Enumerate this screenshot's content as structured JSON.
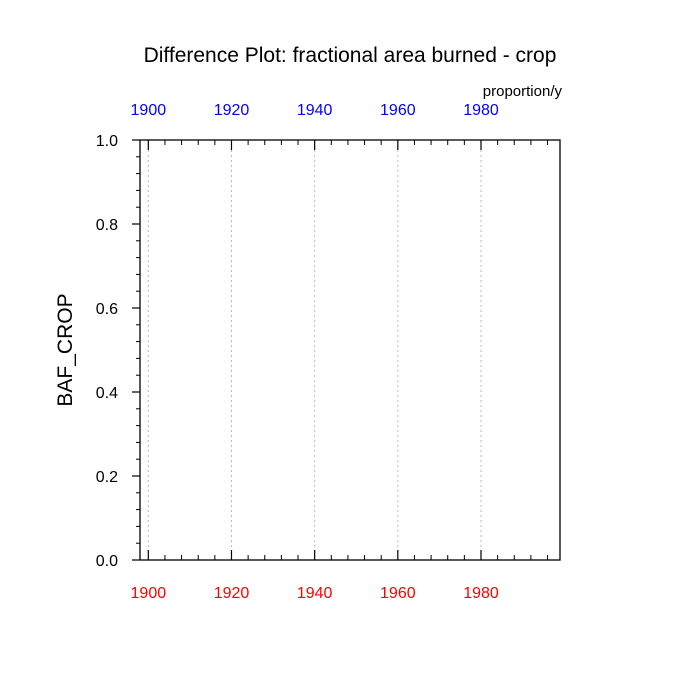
{
  "chart_data": {
    "type": "line",
    "title": "Difference Plot: fractional area burned - crop",
    "units": "proportion/y",
    "ylabel": "BAF_CROP",
    "xlabel": "",
    "xlim": [
      1898,
      1999
    ],
    "ylim": [
      0.0,
      1.0
    ],
    "x_ticks": [
      1900,
      1920,
      1940,
      1960,
      1980
    ],
    "x_tick_labels": [
      "1900",
      "1920",
      "1940",
      "1960",
      "1980"
    ],
    "y_ticks": [
      0.0,
      0.2,
      0.4,
      0.6,
      0.8,
      1.0
    ],
    "y_tick_labels": [
      "0.0",
      "0.2",
      "0.4",
      "0.6",
      "0.8",
      "1.0"
    ],
    "grid": "vertical dotted at major x ticks",
    "series": [],
    "colors": {
      "top_axis_labels": "#0000ff",
      "bottom_axis_labels": "#ff0000",
      "grid": "#bbbbbb",
      "frame": "#000000"
    }
  }
}
